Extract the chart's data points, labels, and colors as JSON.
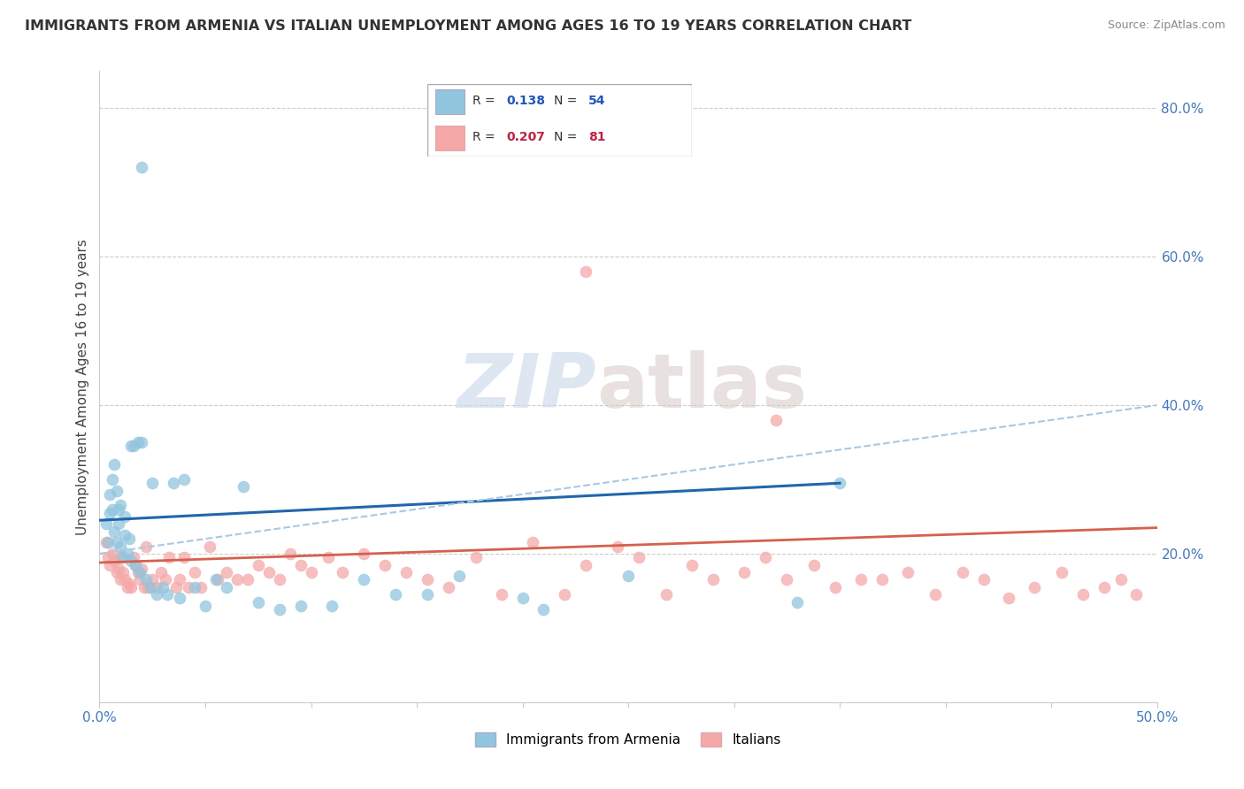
{
  "title": "IMMIGRANTS FROM ARMENIA VS ITALIAN UNEMPLOYMENT AMONG AGES 16 TO 19 YEARS CORRELATION CHART",
  "source": "Source: ZipAtlas.com",
  "ylabel": "Unemployment Among Ages 16 to 19 years",
  "ylabel_right_ticks": [
    "80.0%",
    "60.0%",
    "40.0%",
    "20.0%"
  ],
  "ylabel_right_vals": [
    0.8,
    0.6,
    0.4,
    0.2
  ],
  "legend_blue_r": "0.138",
  "legend_blue_n": "54",
  "legend_pink_r": "0.207",
  "legend_pink_n": "81",
  "legend_label_blue": "Immigrants from Armenia",
  "legend_label_pink": "Italians",
  "xlim": [
    0.0,
    0.5
  ],
  "ylim": [
    0.0,
    0.85
  ],
  "blue_color": "#92c5de",
  "blue_edge_color": "#4393c3",
  "pink_color": "#f4a9a8",
  "pink_edge_color": "#d6604d",
  "blue_line_color": "#2166ac",
  "pink_line_color": "#d6604d",
  "dashed_line_color": "#92c5de",
  "grid_color": "#cccccc",
  "blue_scatter_x": [
    0.02,
    0.003,
    0.004,
    0.005,
    0.005,
    0.006,
    0.006,
    0.007,
    0.007,
    0.008,
    0.008,
    0.009,
    0.009,
    0.01,
    0.01,
    0.011,
    0.012,
    0.012,
    0.013,
    0.014,
    0.015,
    0.015,
    0.016,
    0.017,
    0.018,
    0.019,
    0.02,
    0.022,
    0.024,
    0.025,
    0.027,
    0.03,
    0.032,
    0.035,
    0.038,
    0.04,
    0.045,
    0.05,
    0.055,
    0.06,
    0.068,
    0.075,
    0.085,
    0.095,
    0.11,
    0.125,
    0.14,
    0.155,
    0.17,
    0.21,
    0.25,
    0.33,
    0.35,
    0.2
  ],
  "blue_scatter_y": [
    0.72,
    0.24,
    0.215,
    0.28,
    0.255,
    0.3,
    0.26,
    0.32,
    0.23,
    0.285,
    0.215,
    0.26,
    0.24,
    0.265,
    0.21,
    0.195,
    0.25,
    0.225,
    0.2,
    0.22,
    0.345,
    0.19,
    0.345,
    0.185,
    0.35,
    0.175,
    0.35,
    0.165,
    0.155,
    0.295,
    0.145,
    0.155,
    0.145,
    0.295,
    0.14,
    0.3,
    0.155,
    0.13,
    0.165,
    0.155,
    0.29,
    0.135,
    0.125,
    0.13,
    0.13,
    0.165,
    0.145,
    0.145,
    0.17,
    0.125,
    0.17,
    0.135,
    0.295,
    0.14
  ],
  "pink_scatter_x": [
    0.003,
    0.004,
    0.005,
    0.006,
    0.007,
    0.008,
    0.009,
    0.01,
    0.01,
    0.011,
    0.012,
    0.013,
    0.014,
    0.015,
    0.016,
    0.017,
    0.018,
    0.019,
    0.02,
    0.021,
    0.022,
    0.023,
    0.025,
    0.027,
    0.029,
    0.031,
    0.033,
    0.036,
    0.038,
    0.04,
    0.042,
    0.045,
    0.048,
    0.052,
    0.056,
    0.06,
    0.065,
    0.07,
    0.075,
    0.08,
    0.085,
    0.09,
    0.095,
    0.1,
    0.108,
    0.115,
    0.125,
    0.135,
    0.145,
    0.155,
    0.165,
    0.178,
    0.19,
    0.205,
    0.22,
    0.23,
    0.245,
    0.255,
    0.268,
    0.28,
    0.29,
    0.305,
    0.315,
    0.325,
    0.338,
    0.348,
    0.36,
    0.37,
    0.382,
    0.395,
    0.408,
    0.418,
    0.43,
    0.442,
    0.455,
    0.465,
    0.475,
    0.483,
    0.49,
    0.23,
    0.32
  ],
  "pink_scatter_y": [
    0.215,
    0.195,
    0.185,
    0.2,
    0.19,
    0.175,
    0.18,
    0.165,
    0.195,
    0.175,
    0.165,
    0.155,
    0.16,
    0.155,
    0.195,
    0.185,
    0.175,
    0.165,
    0.18,
    0.155,
    0.21,
    0.155,
    0.165,
    0.155,
    0.175,
    0.165,
    0.195,
    0.155,
    0.165,
    0.195,
    0.155,
    0.175,
    0.155,
    0.21,
    0.165,
    0.175,
    0.165,
    0.165,
    0.185,
    0.175,
    0.165,
    0.2,
    0.185,
    0.175,
    0.195,
    0.175,
    0.2,
    0.185,
    0.175,
    0.165,
    0.155,
    0.195,
    0.145,
    0.215,
    0.145,
    0.185,
    0.21,
    0.195,
    0.145,
    0.185,
    0.165,
    0.175,
    0.195,
    0.165,
    0.185,
    0.155,
    0.165,
    0.165,
    0.175,
    0.145,
    0.175,
    0.165,
    0.14,
    0.155,
    0.175,
    0.145,
    0.155,
    0.165,
    0.145,
    0.58,
    0.38
  ],
  "blue_trend_x": [
    0.0,
    0.35
  ],
  "blue_trend_y": [
    0.245,
    0.295
  ],
  "dashed_trend_x": [
    0.0,
    0.5
  ],
  "dashed_trend_y": [
    0.2,
    0.4
  ],
  "pink_trend_x": [
    0.0,
    0.5
  ],
  "pink_trend_y": [
    0.188,
    0.235
  ]
}
